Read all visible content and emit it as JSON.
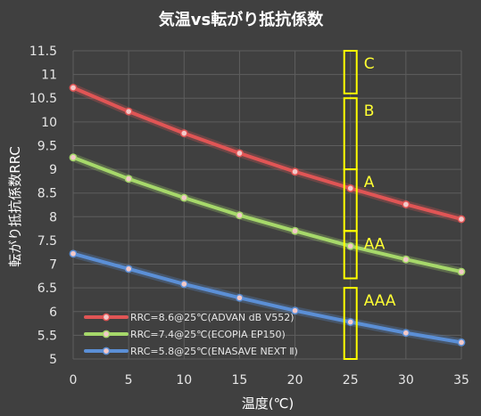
{
  "chart_data": {
    "type": "line",
    "title": "気温vs転がり抵抗係数",
    "xlabel": "温度(℃)",
    "ylabel": "転がり抵抗係数RRC",
    "xlim": [
      0,
      35
    ],
    "ylim": [
      5,
      11.5
    ],
    "xticks": [
      0,
      5,
      10,
      15,
      20,
      25,
      30,
      35
    ],
    "yticks": [
      5,
      5.5,
      6,
      6.5,
      7,
      7.5,
      8,
      8.5,
      9,
      9.5,
      10,
      10.5,
      11,
      11.5
    ],
    "ytick_labels": [
      "5",
      "5.5",
      "6",
      "6.5",
      "7",
      "7.5",
      "8",
      "8.5",
      "9",
      "9.5",
      "10",
      "10.5",
      "11",
      "11.5"
    ],
    "grid": true,
    "legend_position": "bottom-left",
    "series": [
      {
        "name": "RRC=8.6@25℃(ADVAN dB V552)",
        "color": "#e05555",
        "x": [
          0,
          5,
          10,
          15,
          20,
          25,
          30,
          35
        ],
        "y": [
          10.72,
          10.22,
          9.76,
          9.34,
          8.95,
          8.6,
          8.26,
          7.95
        ]
      },
      {
        "name": "RRC=7.4@25℃(ECOPIA EP150)",
        "color": "#a6d86a",
        "x": [
          0,
          5,
          10,
          15,
          20,
          25,
          30,
          35
        ],
        "y": [
          9.25,
          8.8,
          8.4,
          8.03,
          7.7,
          7.38,
          7.1,
          6.84
        ]
      },
      {
        "name": "RRC=5.8@25℃(ENASAVE NEXT Ⅱ)",
        "color": "#5b8fd6",
        "x": [
          0,
          5,
          10,
          15,
          20,
          25,
          30,
          35
        ],
        "y": [
          7.22,
          6.9,
          6.58,
          6.29,
          6.02,
          5.78,
          5.55,
          5.35
        ]
      }
    ],
    "grade_boxes": [
      {
        "label": "AAA",
        "x": 25,
        "y_min": 5.0,
        "y_max": 6.5
      },
      {
        "label": "AA",
        "x": 25,
        "y_min": 6.7,
        "y_max": 7.7
      },
      {
        "label": "A",
        "x": 25,
        "y_min": 7.7,
        "y_max": 9.0
      },
      {
        "label": "B",
        "x": 25,
        "y_min": 9.0,
        "y_max": 10.5
      },
      {
        "label": "C",
        "x": 25,
        "y_min": 10.6,
        "y_max": 11.5
      }
    ],
    "grade_color": "#ffff00"
  }
}
